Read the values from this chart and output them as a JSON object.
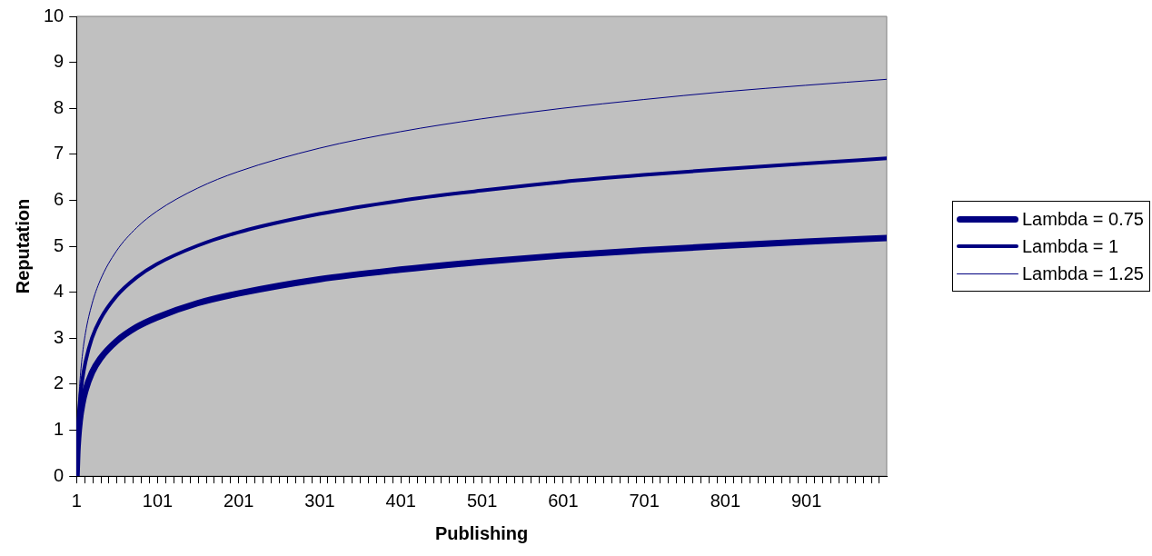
{
  "chart_data": {
    "type": "line",
    "xlabel": "Publishing",
    "ylabel": "Reputation",
    "x": [
      1,
      2,
      3,
      5,
      8,
      12,
      20,
      30,
      50,
      75,
      100,
      150,
      200,
      300,
      400,
      500,
      600,
      700,
      800,
      900,
      1000
    ],
    "series": [
      {
        "name": "Lambda = 0.75",
        "color": "#000080",
        "values": [
          0,
          0.52,
          0.82,
          1.21,
          1.56,
          1.86,
          2.25,
          2.55,
          2.93,
          3.24,
          3.45,
          3.76,
          3.97,
          4.28,
          4.49,
          4.66,
          4.8,
          4.91,
          5.01,
          5.1,
          5.18
        ]
      },
      {
        "name": "Lambda = 1",
        "color": "#000080",
        "values": [
          0,
          0.69,
          1.1,
          1.61,
          2.08,
          2.48,
          3.0,
          3.4,
          3.91,
          4.32,
          4.61,
          5.01,
          5.3,
          5.7,
          5.99,
          6.21,
          6.4,
          6.55,
          6.68,
          6.8,
          6.91
        ]
      },
      {
        "name": "Lambda = 1.25",
        "color": "#000080",
        "values": [
          0,
          0.87,
          1.37,
          2.01,
          2.6,
          3.11,
          3.74,
          4.25,
          4.89,
          5.4,
          5.76,
          6.26,
          6.62,
          7.13,
          7.49,
          7.77,
          8.0,
          8.19,
          8.36,
          8.5,
          8.63
        ]
      }
    ],
    "xlim": [
      1,
      1000
    ],
    "xticks": [
      1,
      {
        "value": 11,
        "label": null
      },
      {
        "value": 21,
        "label": null
      },
      {
        "value": 31,
        "label": null
      },
      {
        "value": 41,
        "label": null
      },
      {
        "value": 51,
        "label": null
      },
      {
        "value": 61,
        "label": null
      },
      {
        "value": 71,
        "label": null
      },
      {
        "value": 81,
        "label": null
      },
      {
        "value": 91,
        "label": null
      },
      101,
      {
        "value": 111,
        "label": null
      },
      {
        "value": 121,
        "label": null
      },
      {
        "value": 131,
        "label": null
      },
      {
        "value": 141,
        "label": null
      },
      {
        "value": 151,
        "label": null
      },
      {
        "value": 161,
        "label": null
      },
      {
        "value": 171,
        "label": null
      },
      {
        "value": 181,
        "label": null
      },
      {
        "value": 191,
        "label": null
      },
      201,
      {
        "value": 211,
        "label": null
      },
      {
        "value": 221,
        "label": null
      },
      {
        "value": 231,
        "label": null
      },
      {
        "value": 241,
        "label": null
      },
      {
        "value": 251,
        "label": null
      },
      {
        "value": 261,
        "label": null
      },
      {
        "value": 271,
        "label": null
      },
      {
        "value": 281,
        "label": null
      },
      {
        "value": 291,
        "label": null
      },
      301,
      {
        "value": 311,
        "label": null
      },
      {
        "value": 321,
        "label": null
      },
      {
        "value": 331,
        "label": null
      },
      {
        "value": 341,
        "label": null
      },
      {
        "value": 351,
        "label": null
      },
      {
        "value": 361,
        "label": null
      },
      {
        "value": 371,
        "label": null
      },
      {
        "value": 381,
        "label": null
      },
      {
        "value": 391,
        "label": null
      },
      401,
      {
        "value": 411,
        "label": null
      },
      {
        "value": 421,
        "label": null
      },
      {
        "value": 431,
        "label": null
      },
      {
        "value": 441,
        "label": null
      },
      {
        "value": 451,
        "label": null
      },
      {
        "value": 461,
        "label": null
      },
      {
        "value": 471,
        "label": null
      },
      {
        "value": 481,
        "label": null
      },
      {
        "value": 491,
        "label": null
      },
      501,
      {
        "value": 511,
        "label": null
      },
      {
        "value": 521,
        "label": null
      },
      {
        "value": 531,
        "label": null
      },
      {
        "value": 541,
        "label": null
      },
      {
        "value": 551,
        "label": null
      },
      {
        "value": 561,
        "label": null
      },
      {
        "value": 571,
        "label": null
      },
      {
        "value": 581,
        "label": null
      },
      {
        "value": 591,
        "label": null
      },
      601,
      {
        "value": 611,
        "label": null
      },
      {
        "value": 621,
        "label": null
      },
      {
        "value": 631,
        "label": null
      },
      {
        "value": 641,
        "label": null
      },
      {
        "value": 651,
        "label": null
      },
      {
        "value": 661,
        "label": null
      },
      {
        "value": 671,
        "label": null
      },
      {
        "value": 681,
        "label": null
      },
      {
        "value": 691,
        "label": null
      },
      701,
      {
        "value": 711,
        "label": null
      },
      {
        "value": 721,
        "label": null
      },
      {
        "value": 731,
        "label": null
      },
      {
        "value": 741,
        "label": null
      },
      {
        "value": 751,
        "label": null
      },
      {
        "value": 761,
        "label": null
      },
      {
        "value": 771,
        "label": null
      },
      {
        "value": 781,
        "label": null
      },
      {
        "value": 791,
        "label": null
      },
      801,
      {
        "value": 811,
        "label": null
      },
      {
        "value": 821,
        "label": null
      },
      {
        "value": 831,
        "label": null
      },
      {
        "value": 841,
        "label": null
      },
      {
        "value": 851,
        "label": null
      },
      {
        "value": 861,
        "label": null
      },
      {
        "value": 871,
        "label": null
      },
      {
        "value": 881,
        "label": null
      },
      {
        "value": 891,
        "label": null
      },
      901,
      {
        "value": 911,
        "label": null
      },
      {
        "value": 921,
        "label": null
      },
      {
        "value": 931,
        "label": null
      },
      {
        "value": 941,
        "label": null
      },
      {
        "value": 951,
        "label": null
      },
      {
        "value": 961,
        "label": null
      },
      {
        "value": 971,
        "label": null
      },
      {
        "value": 981,
        "label": null
      },
      {
        "value": 991,
        "label": null
      }
    ],
    "ylim": [
      0,
      10
    ],
    "yticks": [
      0,
      1,
      2,
      3,
      4,
      5,
      6,
      7,
      8,
      9,
      10
    ],
    "grid": false,
    "legend": "right",
    "marker": "none",
    "line_style": "solid"
  }
}
